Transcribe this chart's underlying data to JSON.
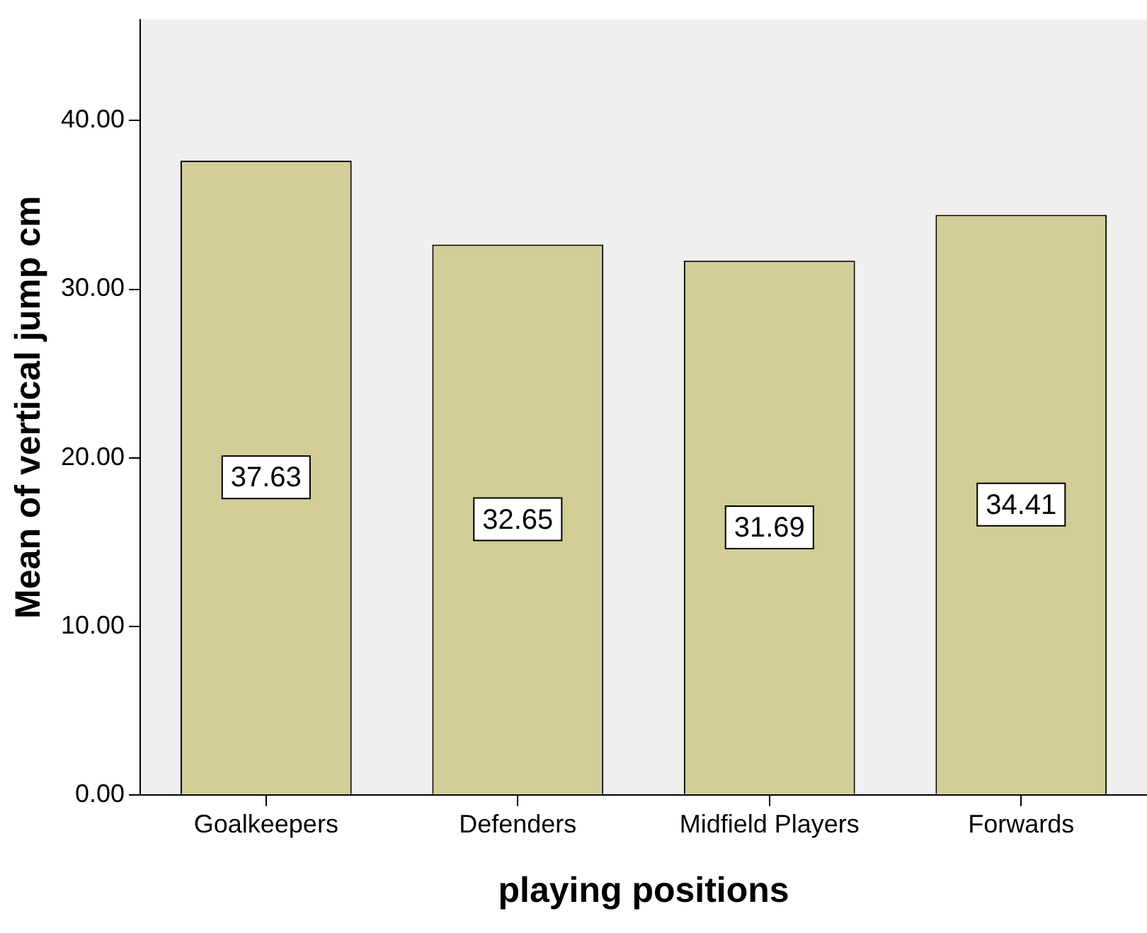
{
  "chart_data": {
    "type": "bar",
    "xlabel": "playing positions",
    "ylabel": "Mean of vertical jump cm",
    "categories": [
      "Goalkeepers",
      "Defenders",
      "Midfield Players",
      "Forwards"
    ],
    "values": [
      37.63,
      32.65,
      31.69,
      34.41
    ],
    "color": "#d3ce97",
    "ylim": [
      0,
      46
    ],
    "yticks": [
      {
        "value": 0,
        "label": "0.00"
      },
      {
        "value": 10,
        "label": "10.00"
      },
      {
        "value": 20,
        "label": "20.00"
      },
      {
        "value": 30,
        "label": "30.00"
      },
      {
        "value": 40,
        "label": "40.00"
      }
    ],
    "grid": false,
    "legend": false,
    "data_labels": true
  }
}
